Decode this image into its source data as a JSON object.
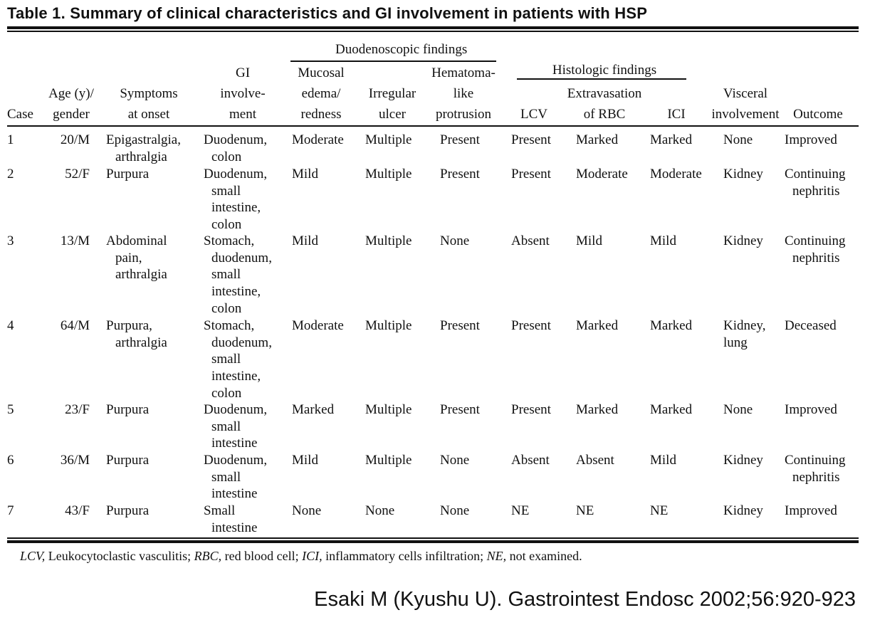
{
  "title": "Table 1.  Summary of clinical characteristics and GI involvement in patients with HSP",
  "group_headers": {
    "duodenoscopic": "Duodenoscopic findings",
    "histologic": "Histologic findings"
  },
  "columns": {
    "case": [
      "Case"
    ],
    "age": [
      "Age (y)/",
      "gender"
    ],
    "symptoms": [
      "Symptoms",
      "at onset"
    ],
    "gi": [
      "GI",
      "involve-",
      "ment"
    ],
    "mucosal": [
      "Mucosal",
      "edema/",
      "redness"
    ],
    "ulcer": [
      "Irregular",
      "ulcer"
    ],
    "hematoma": [
      "Hematoma-",
      "like",
      "protrusion"
    ],
    "lcv": [
      "LCV"
    ],
    "rbc": [
      "Extravasation",
      "of RBC"
    ],
    "ici": [
      "ICI"
    ],
    "visceral": [
      "Visceral",
      "involvement"
    ],
    "outcome": [
      "Outcome"
    ]
  },
  "rows": [
    {
      "case": "1",
      "age": "20/M",
      "symptoms": [
        "Epigastralgia,",
        "arthralgia"
      ],
      "gi": [
        "Duodenum,",
        "colon"
      ],
      "mucosal": "Moderate",
      "ulcer": "Multiple",
      "hematoma": "Present",
      "lcv": "Present",
      "rbc": "Marked",
      "ici": "Marked",
      "visceral": [
        "None"
      ],
      "outcome": [
        "Improved"
      ]
    },
    {
      "case": "2",
      "age": "52/F",
      "symptoms": [
        "Purpura"
      ],
      "gi": [
        "Duodenum,",
        "small",
        "intestine,",
        "colon"
      ],
      "mucosal": "Mild",
      "ulcer": "Multiple",
      "hematoma": "Present",
      "lcv": "Present",
      "rbc": "Moderate",
      "ici": "Moderate",
      "visceral": [
        "Kidney"
      ],
      "outcome": [
        "Continuing",
        "nephritis"
      ]
    },
    {
      "case": "3",
      "age": "13/M",
      "symptoms": [
        "Abdominal",
        "pain,",
        "arthralgia"
      ],
      "gi": [
        "Stomach,",
        "duodenum,",
        "small",
        "intestine,",
        "colon"
      ],
      "mucosal": "Mild",
      "ulcer": "Multiple",
      "hematoma": "None",
      "lcv": "Absent",
      "rbc": "Mild",
      "ici": "Mild",
      "visceral": [
        "Kidney"
      ],
      "outcome": [
        "Continuing",
        "nephritis"
      ]
    },
    {
      "case": "4",
      "age": "64/M",
      "symptoms": [
        "Purpura,",
        "arthralgia"
      ],
      "gi": [
        "Stomach,",
        "duodenum,",
        "small",
        "intestine,",
        "colon"
      ],
      "mucosal": "Moderate",
      "ulcer": "Multiple",
      "hematoma": "Present",
      "lcv": "Present",
      "rbc": "Marked",
      "ici": "Marked",
      "visceral": [
        "Kidney,",
        "lung"
      ],
      "outcome": [
        "Deceased"
      ]
    },
    {
      "case": "5",
      "age": "23/F",
      "symptoms": [
        "Purpura"
      ],
      "gi": [
        "Duodenum,",
        "small",
        "intestine"
      ],
      "mucosal": "Marked",
      "ulcer": "Multiple",
      "hematoma": "Present",
      "lcv": "Present",
      "rbc": "Marked",
      "ici": "Marked",
      "visceral": [
        "None"
      ],
      "outcome": [
        "Improved"
      ]
    },
    {
      "case": "6",
      "age": "36/M",
      "symptoms": [
        "Purpura"
      ],
      "gi": [
        "Duodenum,",
        "small",
        "intestine"
      ],
      "mucosal": "Mild",
      "ulcer": "Multiple",
      "hematoma": "None",
      "lcv": "Absent",
      "rbc": "Absent",
      "ici": "Mild",
      "visceral": [
        "Kidney"
      ],
      "outcome": [
        "Continuing",
        "nephritis"
      ]
    },
    {
      "case": "7",
      "age": "43/F",
      "symptoms": [
        "Purpura"
      ],
      "gi": [
        "Small",
        "intestine"
      ],
      "mucosal": "None",
      "ulcer": "None",
      "hematoma": "None",
      "lcv": "NE",
      "rbc": "NE",
      "ici": "NE",
      "visceral": [
        "Kidney"
      ],
      "outcome": [
        "Improved"
      ]
    }
  ],
  "footnote": [
    {
      "abbr": "LCV,",
      "text": " Leukocytoclastic vasculitis; "
    },
    {
      "abbr": "RBC,",
      "text": " red blood cell; "
    },
    {
      "abbr": "ICI,",
      "text": " inflammatory cells infiltration; "
    },
    {
      "abbr": "NE,",
      "text": " not examined."
    }
  ],
  "citation": "Esaki M  (Kyushu U). Gastrointest Endosc 2002;56:920-923"
}
